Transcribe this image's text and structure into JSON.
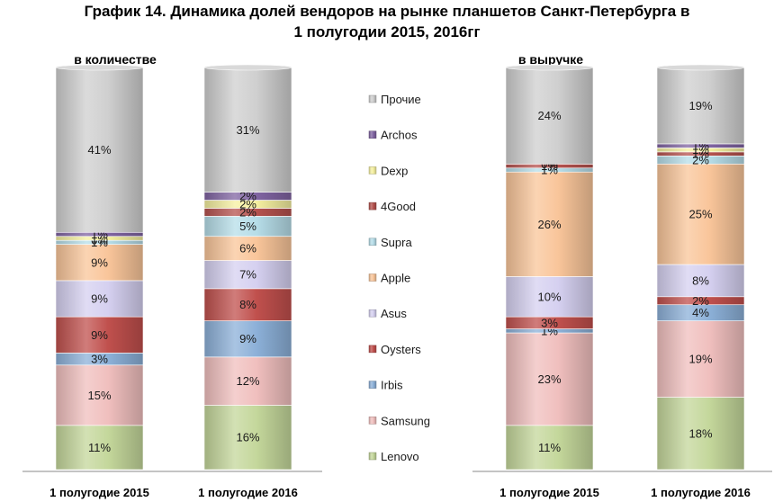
{
  "chart_data": {
    "type": "bar",
    "stacked": true,
    "percent": true,
    "title": "График 14. Динамика долей вендоров на рынке планшетов Санкт-Петербурга в 1 полугодии 2015, 2016гг",
    "title_lines": [
      "График 14. Динамика долей вендоров на рынке планшетов Санкт-Петербурга в",
      "1 полугодии 2015, 2016гг"
    ],
    "legend_position": "center",
    "series": [
      {
        "name": "Lenovo",
        "color": "#c4d79b"
      },
      {
        "name": "Samsung",
        "color": "#f0bfbe"
      },
      {
        "name": "Irbis",
        "color": "#8cb0d8"
      },
      {
        "name": "Oysters",
        "color": "#c0504d"
      },
      {
        "name": "Asus",
        "color": "#d5d0f0"
      },
      {
        "name": "Apple",
        "color": "#f9c59a"
      },
      {
        "name": "Supra",
        "color": "#b6dde8"
      },
      {
        "name": "4Good",
        "color": "#b5524e"
      },
      {
        "name": "Dexp",
        "color": "#f5f0a0"
      },
      {
        "name": "Archos",
        "color": "#8064a2"
      },
      {
        "name": "Прочие",
        "color": "#cfcfcf"
      }
    ],
    "panels": [
      {
        "title": "в количестве",
        "bars": [
          {
            "category": "1 полугодие 2015",
            "values": [
              11,
              15,
              3,
              9,
              9,
              9,
              1,
              0,
              1,
              1,
              41
            ],
            "labels": [
              "11%",
              "15%",
              "3%",
              "9%",
              "9%",
              "9%",
              "1%",
              "0%",
              "1%",
              "1%",
              "41%"
            ]
          },
          {
            "category": "1 полугодие 2016",
            "values": [
              16,
              12,
              9,
              8,
              7,
              6,
              5,
              2,
              2,
              2,
              31
            ],
            "labels": [
              "16%",
              "12%",
              "9%",
              "8%",
              "7%",
              "6%",
              "5%",
              "2%",
              "2%",
              "2%",
              "31%"
            ]
          }
        ]
      },
      {
        "title": "в выручке",
        "bars": [
          {
            "category": "1 полугодие 2015",
            "values": [
              11,
              23,
              1,
              3,
              10,
              26,
              1,
              1,
              0,
              0,
              24
            ],
            "labels": [
              "11%",
              "23%",
              "1%",
              "3%",
              "10%",
              "26%",
              "1%",
              "1%",
              "0%",
              "",
              "24%"
            ]
          },
          {
            "category": "1 полугодие 2016",
            "values": [
              18,
              19,
              4,
              2,
              8,
              25,
              2,
              1,
              1,
              1,
              19
            ],
            "labels": [
              "18%",
              "19%",
              "4%",
              "2%",
              "8%",
              "25%",
              "2%",
              "1%",
              "1%",
              "1%",
              "19%"
            ]
          }
        ]
      }
    ]
  }
}
